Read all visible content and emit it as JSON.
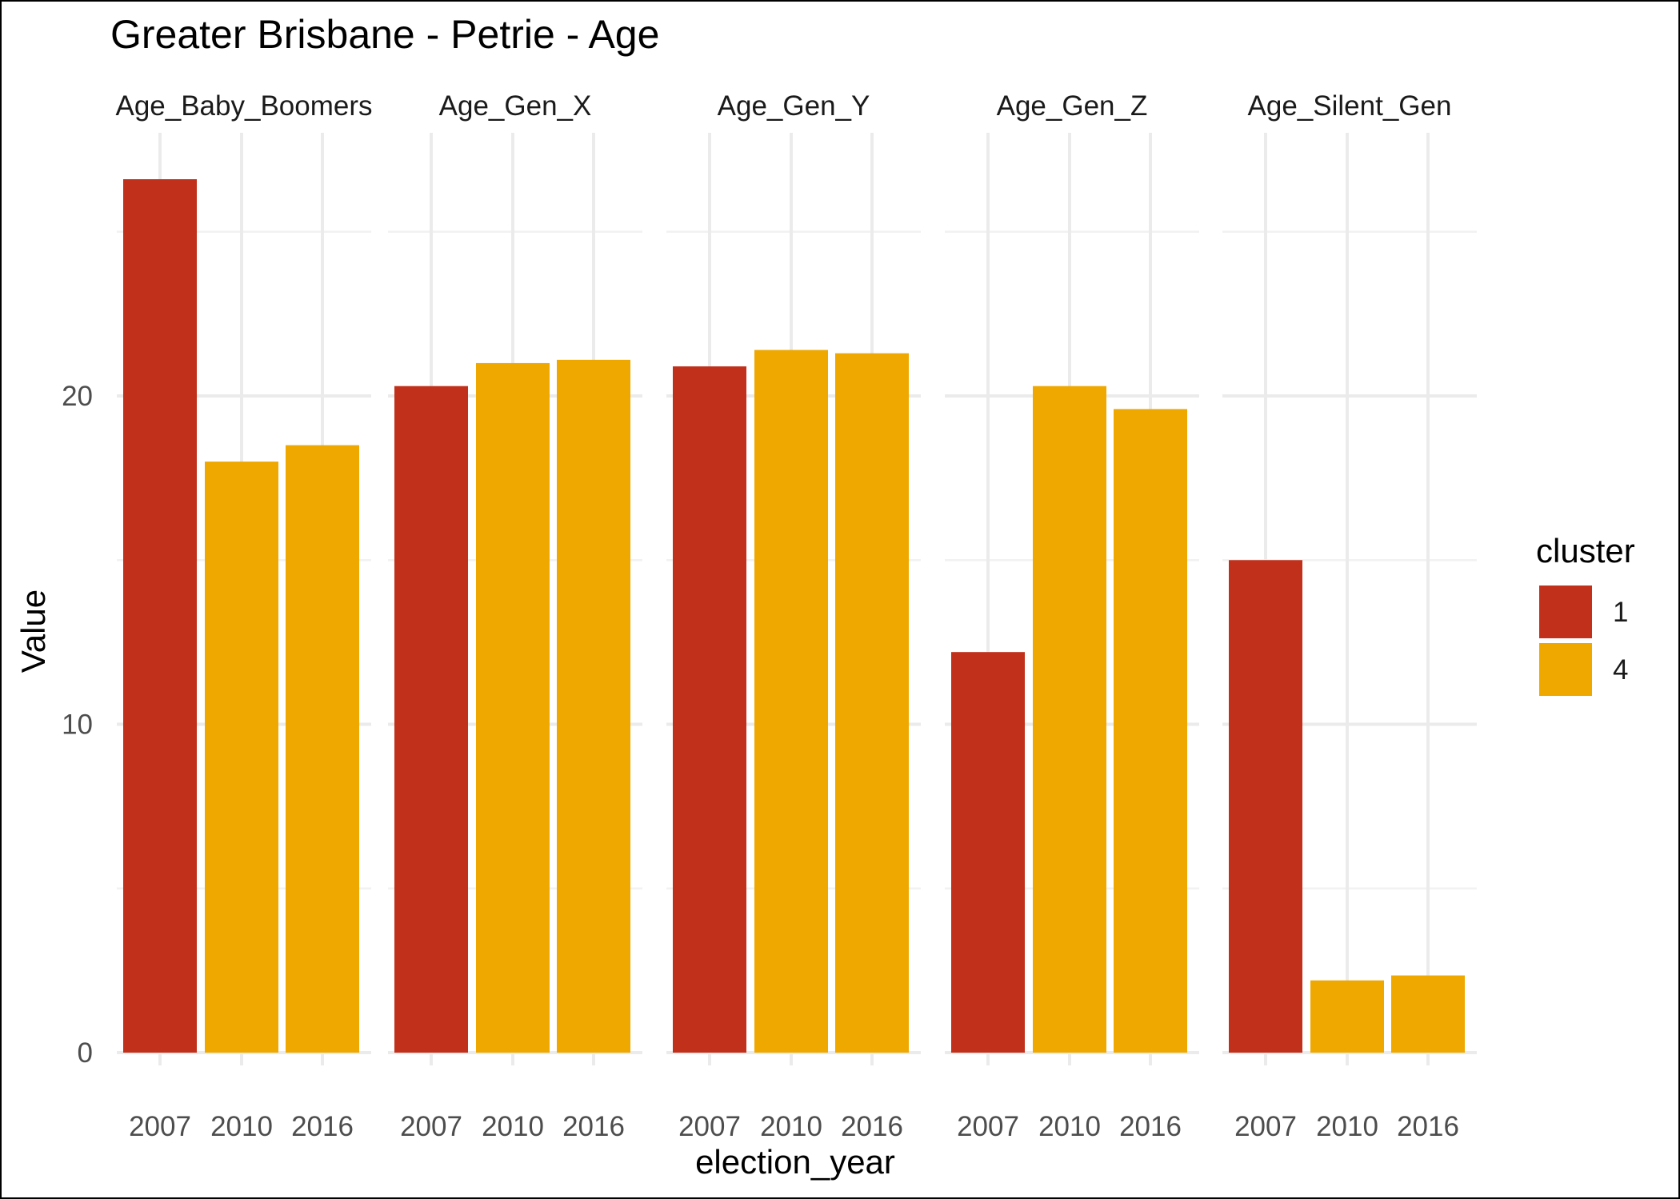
{
  "chart_data": {
    "type": "bar",
    "title": "Greater Brisbane - Petrie - Age",
    "xlabel": "election_year",
    "ylabel": "Value",
    "ylim": [
      0,
      27
    ],
    "yticks": [
      0,
      10,
      20
    ],
    "grid": true,
    "legend": {
      "title": "cluster",
      "placement": "right",
      "entries": [
        {
          "label": "1",
          "color": "#C0301A"
        },
        {
          "label": "4",
          "color": "#EFA800"
        }
      ]
    },
    "categories": [
      "2007",
      "2010",
      "2016"
    ],
    "panels": [
      {
        "name": "Age_Baby_Boomers",
        "values": [
          26.6,
          18.0,
          18.5
        ],
        "clusters": [
          "1",
          "4",
          "4"
        ]
      },
      {
        "name": "Age_Gen_X",
        "values": [
          20.3,
          21.0,
          21.1
        ],
        "clusters": [
          "1",
          "4",
          "4"
        ]
      },
      {
        "name": "Age_Gen_Y",
        "values": [
          20.9,
          21.4,
          21.3
        ],
        "clusters": [
          "1",
          "4",
          "4"
        ]
      },
      {
        "name": "Age_Gen_Z",
        "values": [
          12.2,
          20.3,
          19.6
        ],
        "clusters": [
          "1",
          "4",
          "4"
        ]
      },
      {
        "name": "Age_Silent_Gen",
        "values": [
          15.0,
          2.2,
          2.35
        ],
        "clusters": [
          "1",
          "4",
          "4"
        ]
      }
    ]
  }
}
